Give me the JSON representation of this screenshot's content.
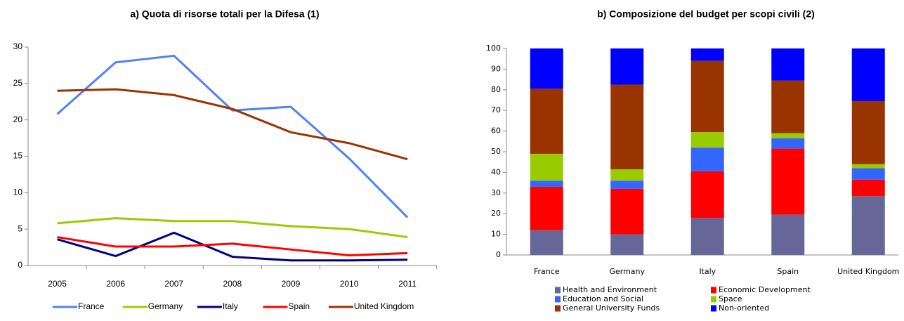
{
  "chart_data": [
    {
      "type": "line",
      "title": "a) Quota di risorse totali per la Difesa (1)",
      "categories": [
        "2005",
        "2006",
        "2007",
        "2008",
        "2009",
        "2010",
        "2011"
      ],
      "series": [
        {
          "name": "France",
          "color": "#4f81f7",
          "values": [
            20.8,
            27.9,
            28.8,
            21.3,
            21.8,
            14.7,
            6.6
          ]
        },
        {
          "name": "Germany",
          "color": "#99cc00",
          "values": [
            5.8,
            6.5,
            6.1,
            6.1,
            5.4,
            5.0,
            3.9
          ]
        },
        {
          "name": "Italy",
          "color": "#000080",
          "values": [
            3.6,
            1.3,
            4.5,
            1.2,
            0.7,
            0.7,
            0.8
          ]
        },
        {
          "name": "Spain",
          "color": "#ff0000",
          "values": [
            3.9,
            2.6,
            2.6,
            3.0,
            2.2,
            1.4,
            1.7
          ]
        },
        {
          "name": "United Kingdom",
          "color": "#993300",
          "values": [
            24.0,
            24.2,
            23.4,
            21.5,
            18.3,
            16.8,
            14.6
          ]
        }
      ],
      "ylim": [
        0,
        30
      ],
      "yticks": [
        0,
        5,
        10,
        15,
        20,
        25,
        30
      ],
      "grid": false,
      "legend": "bottom"
    },
    {
      "type": "stacked-bar",
      "title": "b) Composizione del budget per scopi civili (2)",
      "categories": [
        "France",
        "Germany",
        "Italy",
        "Spain",
        "United Kingdom"
      ],
      "series": [
        {
          "name": "Health and Environment",
          "color": "#666699",
          "values": [
            12,
            10,
            18,
            19.5,
            28.5
          ]
        },
        {
          "name": "Economic Development",
          "color": "#ff0000",
          "values": [
            21,
            22,
            22.5,
            32,
            8
          ]
        },
        {
          "name": "Education and Social",
          "color": "#3366ff",
          "values": [
            3,
            4,
            11.5,
            5,
            5.5
          ]
        },
        {
          "name": "Space",
          "color": "#99cc00",
          "values": [
            13,
            5.5,
            7.5,
            2.5,
            2
          ]
        },
        {
          "name": "General University Funds",
          "color": "#993300",
          "values": [
            31.5,
            41,
            34.5,
            25.5,
            30.5
          ]
        },
        {
          "name": "Non-oriented",
          "color": "#0000ff",
          "values": [
            19.5,
            17.5,
            6,
            15.5,
            25.5
          ]
        }
      ],
      "ylim": [
        0,
        100
      ],
      "yticks": [
        0,
        10,
        20,
        30,
        40,
        50,
        60,
        70,
        80,
        90,
        100
      ],
      "grid": false,
      "legend": "bottom"
    }
  ]
}
